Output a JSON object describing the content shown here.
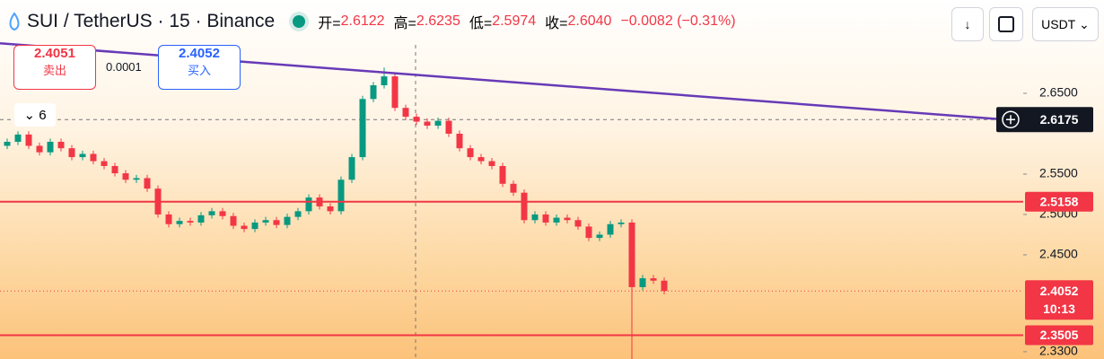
{
  "header": {
    "symbol": "SUI / TetherUS · 15 · Binance",
    "open_label": "开=",
    "open": "2.6122",
    "high_label": "高=",
    "high": "2.6235",
    "low_label": "低=",
    "low": "2.5974",
    "close_label": "收=",
    "close": "2.6040",
    "change": "−0.0082 (−0.31%)",
    "currency": "USDT"
  },
  "order_panel": {
    "sell_price": "2.4051",
    "sell_label": "卖出",
    "spread": "0.0001",
    "buy_price": "2.4052",
    "buy_label": "买入",
    "indicators": "6"
  },
  "chart_data": {
    "type": "candlestick",
    "up_color": "#089981",
    "down_color": "#f23645",
    "ylim": [
      2.321,
      2.7656
    ],
    "yticks": [
      {
        "value": 2.65,
        "label": "2.6500"
      },
      {
        "value": 2.55,
        "label": "2.5500"
      },
      {
        "value": 2.5,
        "label": "2.5000"
      },
      {
        "value": 2.45,
        "label": "2.4500"
      },
      {
        "value": 2.33,
        "label": "2.3300"
      }
    ],
    "open": [
      2.585,
      2.59,
      2.599,
      2.585,
      2.577,
      2.59,
      2.582,
      2.571,
      2.575,
      2.566,
      2.56,
      2.551,
      2.543,
      2.545,
      2.532,
      2.5,
      2.488,
      2.492,
      2.49,
      2.499,
      2.504,
      2.498,
      2.486,
      2.482,
      2.49,
      2.493,
      2.487,
      2.497,
      2.504,
      2.521,
      2.51,
      2.504,
      2.543,
      2.571,
      2.643,
      2.66,
      2.671,
      2.632,
      2.621,
      2.615,
      2.61,
      2.616,
      2.6,
      2.582,
      2.571,
      2.566,
      2.56,
      2.538,
      2.527,
      2.493,
      2.5,
      2.49,
      2.496,
      2.493,
      2.485,
      2.471,
      2.475,
      2.488,
      2.49,
      2.41,
      2.421,
      2.418
    ],
    "high": [
      2.594,
      2.603,
      2.603,
      2.589,
      2.594,
      2.594,
      2.586,
      2.579,
      2.579,
      2.57,
      2.564,
      2.555,
      2.549,
      2.549,
      2.536,
      2.504,
      2.496,
      2.496,
      2.503,
      2.508,
      2.508,
      2.502,
      2.49,
      2.494,
      2.497,
      2.497,
      2.501,
      2.508,
      2.525,
      2.525,
      2.514,
      2.547,
      2.575,
      2.647,
      2.664,
      2.682,
      2.675,
      2.636,
      2.625,
      2.619,
      2.62,
      2.62,
      2.604,
      2.586,
      2.575,
      2.57,
      2.564,
      2.542,
      2.531,
      2.504,
      2.504,
      2.5,
      2.5,
      2.497,
      2.489,
      2.479,
      2.492,
      2.494,
      2.494,
      2.425,
      2.425,
      2.422
    ],
    "low": [
      2.581,
      2.586,
      2.581,
      2.573,
      2.573,
      2.578,
      2.567,
      2.567,
      2.562,
      2.556,
      2.547,
      2.539,
      2.539,
      2.528,
      2.496,
      2.484,
      2.484,
      2.486,
      2.486,
      2.495,
      2.494,
      2.482,
      2.478,
      2.478,
      2.486,
      2.483,
      2.483,
      2.493,
      2.5,
      2.506,
      2.5,
      2.5,
      2.539,
      2.567,
      2.639,
      2.656,
      2.628,
      2.617,
      2.611,
      2.606,
      2.606,
      2.596,
      2.578,
      2.567,
      2.562,
      2.556,
      2.534,
      2.523,
      2.489,
      2.489,
      2.486,
      2.486,
      2.489,
      2.481,
      2.467,
      2.467,
      2.471,
      2.484,
      2.32,
      2.406,
      2.414,
      2.401
    ],
    "close": [
      2.59,
      2.599,
      2.585,
      2.577,
      2.59,
      2.582,
      2.571,
      2.575,
      2.566,
      2.56,
      2.551,
      2.543,
      2.545,
      2.532,
      2.5,
      2.488,
      2.492,
      2.49,
      2.499,
      2.504,
      2.498,
      2.486,
      2.482,
      2.49,
      2.493,
      2.487,
      2.497,
      2.504,
      2.521,
      2.51,
      2.504,
      2.543,
      2.571,
      2.643,
      2.66,
      2.671,
      2.632,
      2.621,
      2.615,
      2.61,
      2.616,
      2.6,
      2.582,
      2.571,
      2.566,
      2.56,
      2.538,
      2.527,
      2.493,
      2.5,
      2.49,
      2.496,
      2.493,
      2.485,
      2.471,
      2.475,
      2.488,
      2.49,
      2.41,
      2.421,
      2.418,
      2.4052
    ],
    "trendline": {
      "start": 2.712,
      "end": 2.6175,
      "color": "#673ab7"
    },
    "price_lines": [
      {
        "value": 2.5158,
        "color": "#f23645"
      },
      {
        "value": 2.3505,
        "color": "#f23645"
      }
    ],
    "last_price": {
      "value": 2.4052,
      "countdown": "10:13",
      "color": "#f23645"
    }
  }
}
